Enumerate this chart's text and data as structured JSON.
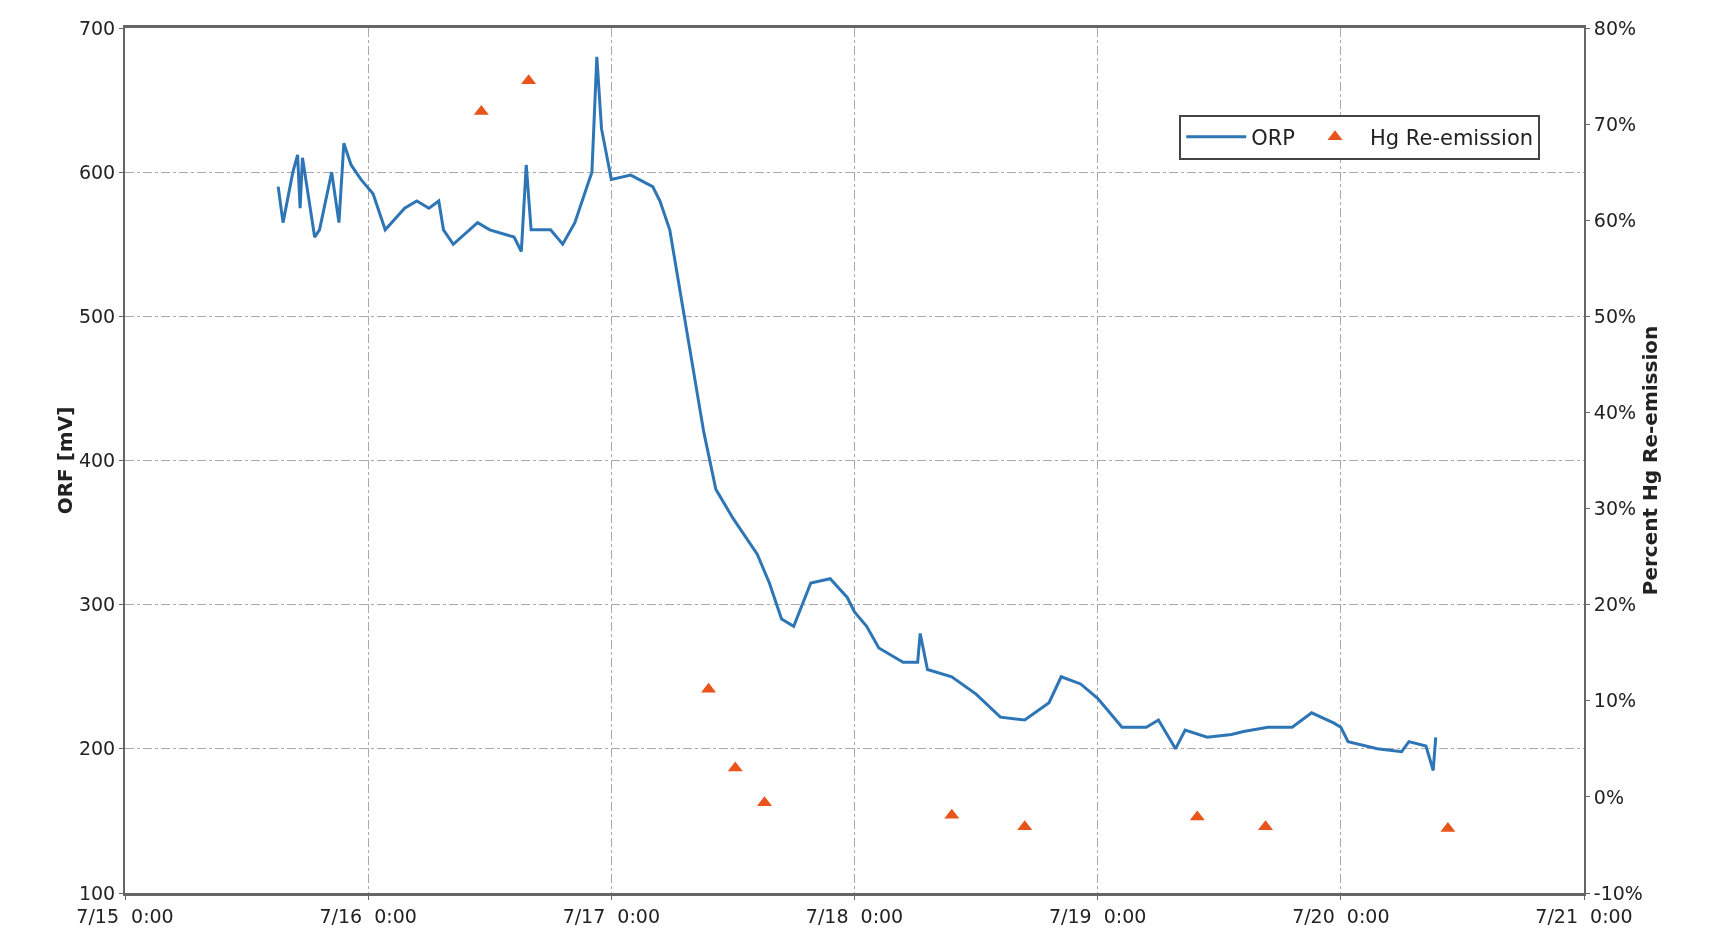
{
  "chart_data": {
    "type": "line",
    "ylabel": "ORF [mV]",
    "y2label": "Percent Hg Re-emission",
    "legend": "top right",
    "grid": true,
    "xlim": [
      "--07-15",
      "--07-21"
    ],
    "xticks": [
      {
        "value": "--07-15",
        "label": "7/15  0:00"
      },
      {
        "value": "--07-16",
        "label": "7/16  0:00"
      },
      {
        "value": "--07-17",
        "label": "7/17  0:00"
      },
      {
        "value": "--07-18",
        "label": "7/18  0:00"
      },
      {
        "value": "--07-19",
        "label": "7/19  0:00"
      },
      {
        "value": "--07-20",
        "label": "7/20  0:00"
      },
      {
        "value": "--07-21",
        "label": "7/21  0:00"
      }
    ],
    "ylim": [
      100,
      700
    ],
    "yticks": [
      100,
      200,
      300,
      400,
      500,
      600,
      700
    ],
    "y2lim": [
      -10,
      80
    ],
    "y2ticks": [
      {
        "value": -10,
        "label": "-10%"
      },
      {
        "value": 0,
        "label": "0%"
      },
      {
        "value": 10,
        "label": "10%"
      },
      {
        "value": 20,
        "label": "20%"
      },
      {
        "value": 30,
        "label": "30%"
      },
      {
        "value": 40,
        "label": "40%"
      },
      {
        "value": 50,
        "label": "50%"
      },
      {
        "value": 60,
        "label": "60%"
      },
      {
        "value": 70,
        "label": "70%"
      },
      {
        "value": 80,
        "label": "80%"
      }
    ],
    "series": [
      {
        "name": "ORP",
        "color": "#2e75b6",
        "line_style": "solid",
        "marker": "none",
        "x": [
          "--07-15T15:07",
          "--07-15T15:36",
          "--07-15T16:34",
          "--07-15T17:02",
          "--07-15T17:17",
          "--07-15T17:31",
          "--07-15T18:43",
          "--07-15T19:12",
          "--07-15T20:24",
          "--07-15T21:07",
          "--07-15T21:36",
          "--07-15T22:19",
          "--07-15T23:17",
          "--07-16T00:29",
          "--07-16T01:41",
          "--07-16T03:36",
          "--07-16T04:48",
          "--07-16T06:00",
          "--07-16T06:58",
          "--07-16T07:26",
          "--07-16T08:24",
          "--07-16T10:48",
          "--07-16T12:00",
          "--07-16T14:24",
          "--07-16T15:07",
          "--07-16T15:36",
          "--07-16T16:05",
          "--07-16T18:00",
          "--07-16T19:12",
          "--07-16T20:24",
          "--07-16T21:36",
          "--07-16T22:05",
          "--07-16T22:34",
          "--07-16T23:02",
          "--07-17T00:00",
          "--07-17T01:55",
          "--07-17T04:05",
          "--07-17T04:48",
          "--07-17T05:46",
          "--07-17T07:12",
          "--07-17T09:07",
          "--07-17T10:19",
          "--07-17T12:00",
          "--07-17T14:24",
          "--07-17T15:36",
          "--07-17T16:48",
          "--07-17T18:00",
          "--07-17T19:41",
          "--07-17T21:36",
          "--07-17T23:17",
          "--07-18T00:00",
          "--07-18T01:12",
          "--07-18T02:24",
          "--07-18T04:48",
          "--07-18T06:14",
          "--07-18T06:29",
          "--07-18T07:12",
          "--07-18T09:36",
          "--07-18T12:00",
          "--07-18T14:24",
          "--07-18T16:48",
          "--07-18T19:12",
          "--07-18T20:24",
          "--07-18T22:19",
          "--07-19T00:00",
          "--07-19T01:12",
          "--07-19T02:24",
          "--07-19T04:48",
          "--07-19T06:00",
          "--07-19T07:41",
          "--07-19T08:38",
          "--07-19T10:48",
          "--07-19T13:12",
          "--07-19T14:24",
          "--07-19T16:48",
          "--07-19T19:12",
          "--07-19T21:07",
          "--07-19T23:17",
          "--07-20T00:00",
          "--07-20T00:43",
          "--07-20T03:36",
          "--07-20T06:00",
          "--07-20T06:43",
          "--07-20T08:24",
          "--07-20T09:07",
          "--07-20T09:22"
        ],
        "values": [
          590,
          565,
          600,
          612,
          575,
          610,
          555,
          560,
          600,
          565,
          620,
          605,
          595,
          585,
          560,
          575,
          580,
          575,
          580,
          560,
          550,
          565,
          560,
          555,
          545,
          605,
          560,
          560,
          550,
          565,
          590,
          600,
          680,
          630,
          595,
          598,
          590,
          580,
          560,
          500,
          420,
          380,
          360,
          335,
          315,
          290,
          285,
          315,
          318,
          305,
          295,
          285,
          270,
          260,
          260,
          280,
          255,
          250,
          238,
          222,
          220,
          232,
          250,
          245,
          235,
          225,
          215,
          215,
          220,
          200,
          213,
          208,
          210,
          212,
          215,
          215,
          225,
          218,
          215,
          205,
          200,
          198,
          205,
          202,
          185,
          208
        ]
      },
      {
        "name": "Hg Re-emission",
        "type": "scatter",
        "axis": "y2",
        "color": "#e8541a",
        "marker": "triangle",
        "x": [
          "--07-16T11:10",
          "--07-16T15:50",
          "--07-17T09:36",
          "--07-17T12:14",
          "--07-17T15:07",
          "--07-18T09:36",
          "--07-18T16:48",
          "--07-19T09:50",
          "--07-19T16:34",
          "--07-20T10:34"
        ],
        "values": [
          71.3,
          74.5,
          11.2,
          3.0,
          -0.6,
          -1.9,
          -3.1,
          -2.1,
          -3.1,
          -3.3
        ]
      }
    ]
  }
}
